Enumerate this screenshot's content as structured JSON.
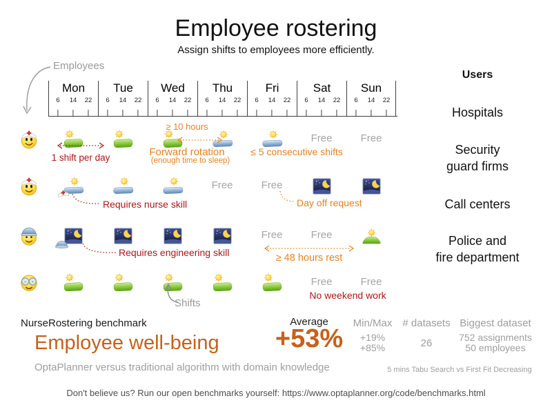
{
  "title": "Employee rostering",
  "subtitle": "Assign shifts to employees more efficiently.",
  "labels": {
    "employees": "Employees",
    "shifts": "Shifts"
  },
  "timeline": {
    "days": [
      "Mon",
      "Tue",
      "Wed",
      "Thu",
      "Fri",
      "Sat",
      "Sun"
    ],
    "hours": [
      "6",
      "14",
      "22"
    ]
  },
  "roster": {
    "free_label": "Free",
    "rows": [
      {
        "employee": "nurse-emoji",
        "cells": [
          {
            "type": "day"
          },
          {
            "type": "day"
          },
          {
            "type": "day"
          },
          {
            "type": "late"
          },
          {
            "type": "late"
          },
          {
            "type": "free"
          },
          {
            "type": "free"
          }
        ]
      },
      {
        "employee": "nurse-emoji",
        "cells": [
          {
            "type": "late",
            "badge": "nurse-cap"
          },
          {
            "type": "late"
          },
          {
            "type": "late"
          },
          {
            "type": "free"
          },
          {
            "type": "free"
          },
          {
            "type": "night"
          },
          {
            "type": "night"
          }
        ]
      },
      {
        "employee": "engineer-emoji",
        "cells": [
          {
            "type": "night",
            "badge": "hard-hat"
          },
          {
            "type": "night"
          },
          {
            "type": "night"
          },
          {
            "type": "night"
          },
          {
            "type": "free"
          },
          {
            "type": "free"
          },
          {
            "type": "sunrise"
          }
        ]
      },
      {
        "employee": "glasses-emoji",
        "cells": [
          {
            "type": "day"
          },
          {
            "type": "day"
          },
          {
            "type": "day"
          },
          {
            "type": "day"
          },
          {
            "type": "day"
          },
          {
            "type": "free"
          },
          {
            "type": "free"
          }
        ]
      }
    ]
  },
  "annotations": {
    "one_shift_per_day": "1 shift per day",
    "ten_hours": "≥ 10 hours",
    "forward_rotation": "Forward rotation",
    "forward_rotation_sub": "(enough time to sleep)",
    "consecutive_shifts": "≤ 5 consecutive shifts",
    "requires_nurse_skill": "Requires nurse skill",
    "day_off_request": "Day off request",
    "requires_engineering_skill": "Requires engineering skill",
    "rest_48": "≥ 48 hours rest",
    "no_weekend_work": "No weekend work"
  },
  "users": {
    "header": "Users",
    "items": [
      "Hospitals",
      "Security\nguard firms",
      "Call centers",
      "Police and\nfire department"
    ]
  },
  "benchmark": {
    "name": "NurseRostering benchmark",
    "headline": "Employee well-being",
    "comparison": "OptaPlanner versus traditional algorithm with domain knowledge",
    "average_label": "Average",
    "average_value": "+53%",
    "minmax_label": "Min/Max",
    "minmax_values": "+19%\n+85%",
    "datasets_label": "# datasets",
    "datasets_value": "26",
    "biggest_label": "Biggest dataset",
    "biggest_values": "752 assignments\n50 employees",
    "note": "5 mins Tabu Search vs First Fit Decreasing"
  },
  "footer": "Don't believe us? Run our open benchmarks yourself: https://www.optaplanner.org/code/benchmarks.html",
  "colors": {
    "orange_accent": "#c7611a",
    "orange_annotation": "#e8811c",
    "red_constraint": "#b11515",
    "gray_muted": "#9e9e9e"
  }
}
